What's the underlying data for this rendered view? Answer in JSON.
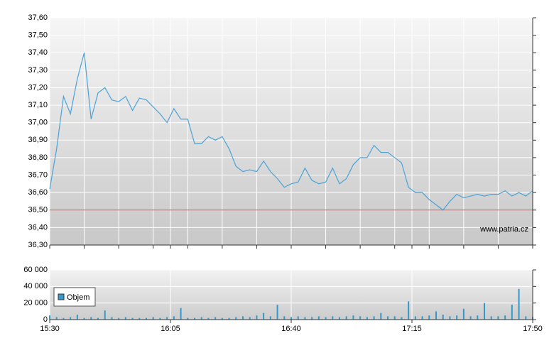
{
  "chart_data": [
    {
      "type": "line",
      "watermark": "www.patria.cz",
      "color": "#4aa3d8",
      "grid": true,
      "xlim": [
        "15:30",
        "17:50"
      ],
      "xticks": [
        "15:30",
        "16:05",
        "16:40",
        "17:15",
        "17:50"
      ],
      "xminorticks": [
        "15:40",
        "15:50",
        "16:00",
        "16:10",
        "16:20",
        "16:30",
        "16:40",
        "16:50",
        "17:00",
        "17:10",
        "17:20",
        "17:30",
        "17:40"
      ],
      "ylim": [
        36.3,
        37.6
      ],
      "yticks": [
        {
          "value": 36.3,
          "label": "36,30"
        },
        {
          "value": 36.4,
          "label": "36,40"
        },
        {
          "value": 36.5,
          "label": "36,50"
        },
        {
          "value": 36.6,
          "label": "36,60"
        },
        {
          "value": 36.7,
          "label": "36,70"
        },
        {
          "value": 36.8,
          "label": "36,80"
        },
        {
          "value": 36.9,
          "label": "36,90"
        },
        {
          "value": 37.0,
          "label": "37,00"
        },
        {
          "value": 37.1,
          "label": "37,10"
        },
        {
          "value": 37.2,
          "label": "37,20"
        },
        {
          "value": 37.3,
          "label": "37,30"
        },
        {
          "value": 37.4,
          "label": "37,40"
        },
        {
          "value": 37.5,
          "label": "37,50"
        },
        {
          "value": 37.6,
          "label": "37,60"
        }
      ],
      "ref_line": {
        "value": 36.5,
        "color": "#e05050"
      },
      "x": [
        "15:30",
        "15:32",
        "15:34",
        "15:36",
        "15:38",
        "15:40",
        "15:42",
        "15:44",
        "15:46",
        "15:48",
        "15:50",
        "15:52",
        "15:54",
        "15:56",
        "15:58",
        "16:00",
        "16:02",
        "16:04",
        "16:06",
        "16:08",
        "16:10",
        "16:12",
        "16:14",
        "16:16",
        "16:18",
        "16:20",
        "16:22",
        "16:24",
        "16:26",
        "16:28",
        "16:30",
        "16:32",
        "16:34",
        "16:36",
        "16:38",
        "16:40",
        "16:42",
        "16:44",
        "16:46",
        "16:48",
        "16:50",
        "16:52",
        "16:54",
        "16:56",
        "16:58",
        "17:00",
        "17:02",
        "17:04",
        "17:06",
        "17:08",
        "17:10",
        "17:12",
        "17:14",
        "17:16",
        "17:18",
        "17:20",
        "17:22",
        "17:24",
        "17:26",
        "17:28",
        "17:30",
        "17:32",
        "17:34",
        "17:36",
        "17:38",
        "17:40",
        "17:42",
        "17:44",
        "17:46",
        "17:48",
        "17:50"
      ],
      "values": [
        36.62,
        36.85,
        37.15,
        37.05,
        37.25,
        37.4,
        37.02,
        37.17,
        37.2,
        37.13,
        37.12,
        37.15,
        37.07,
        37.14,
        37.13,
        37.09,
        37.05,
        37.0,
        37.08,
        37.02,
        37.02,
        36.88,
        36.88,
        36.92,
        36.9,
        36.92,
        36.85,
        36.75,
        36.72,
        36.73,
        36.72,
        36.78,
        36.72,
        36.68,
        36.63,
        36.65,
        36.66,
        36.74,
        36.67,
        36.65,
        36.66,
        36.74,
        36.65,
        36.68,
        36.76,
        36.8,
        36.8,
        36.87,
        36.83,
        36.83,
        36.8,
        36.77,
        36.63,
        36.6,
        36.6,
        36.56,
        36.53,
        36.5,
        36.55,
        36.59,
        36.57,
        36.58,
        36.59,
        36.58,
        36.59,
        36.59,
        36.61,
        36.58,
        36.6,
        36.58,
        36.61
      ]
    },
    {
      "type": "bar",
      "color": "#3399cc",
      "legend": "Objem",
      "xlim": [
        "15:30",
        "17:50"
      ],
      "xticks": [
        "15:30",
        "16:05",
        "16:40",
        "17:15",
        "17:50"
      ],
      "ylim": [
        0,
        60000
      ],
      "yticks": [
        0,
        {
          "value": 20000,
          "label": "20 000"
        },
        {
          "value": 40000,
          "label": "40 000"
        },
        {
          "value": 60000,
          "label": "60 000"
        }
      ],
      "x": [
        "15:30",
        "15:32",
        "15:34",
        "15:36",
        "15:38",
        "15:40",
        "15:42",
        "15:44",
        "15:46",
        "15:48",
        "15:50",
        "15:52",
        "15:54",
        "15:56",
        "15:58",
        "16:00",
        "16:02",
        "16:04",
        "16:06",
        "16:08",
        "16:10",
        "16:12",
        "16:14",
        "16:16",
        "16:18",
        "16:20",
        "16:22",
        "16:24",
        "16:26",
        "16:28",
        "16:30",
        "16:32",
        "16:34",
        "16:36",
        "16:38",
        "16:40",
        "16:42",
        "16:44",
        "16:46",
        "16:48",
        "16:50",
        "16:52",
        "16:54",
        "16:56",
        "16:58",
        "17:00",
        "17:02",
        "17:04",
        "17:06",
        "17:08",
        "17:10",
        "17:12",
        "17:14",
        "17:16",
        "17:18",
        "17:20",
        "17:22",
        "17:24",
        "17:26",
        "17:28",
        "17:30",
        "17:32",
        "17:34",
        "17:36",
        "17:38",
        "17:40",
        "17:42",
        "17:44",
        "17:46",
        "17:48",
        "17:50"
      ],
      "values": [
        5000,
        3000,
        2000,
        3000,
        6000,
        2000,
        3000,
        2000,
        11000,
        3000,
        2000,
        3000,
        2000,
        2000,
        2000,
        3000,
        2000,
        3000,
        4000,
        14000,
        2000,
        2000,
        3000,
        2000,
        3000,
        2000,
        2000,
        3000,
        4000,
        3000,
        5000,
        8000,
        4000,
        18000,
        4000,
        3000,
        4000,
        3000,
        3000,
        4000,
        3000,
        4000,
        3000,
        4000,
        5000,
        4000,
        3000,
        4000,
        8000,
        4000,
        4000,
        3000,
        22000,
        4000,
        4000,
        5000,
        10000,
        6000,
        4000,
        5000,
        13000,
        4000,
        5000,
        20000,
        4000,
        4000,
        5000,
        18000,
        37000,
        4000,
        3000
      ]
    }
  ]
}
